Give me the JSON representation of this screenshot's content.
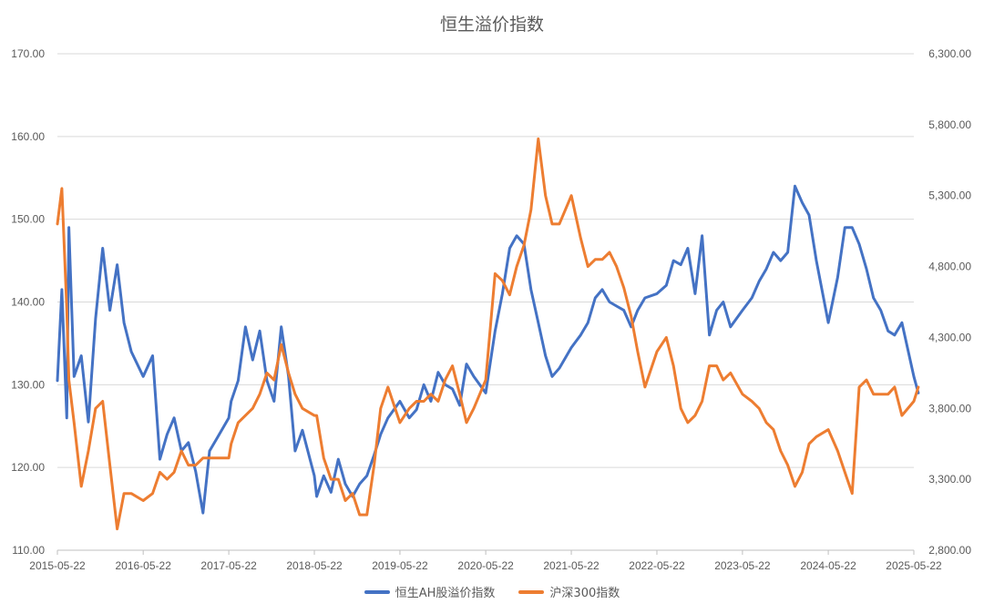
{
  "chart_data": {
    "type": "line",
    "title": "恒生溢价指数",
    "x_tick_labels": [
      "2015-05-22",
      "2016-05-22",
      "2017-05-22",
      "2018-05-22",
      "2019-05-22",
      "2020-05-22",
      "2021-05-22",
      "2022-05-22",
      "2023-05-22",
      "2024-05-22",
      "2025-05-22"
    ],
    "y_left_ticks": [
      "110.00",
      "120.00",
      "130.00",
      "140.00",
      "150.00",
      "160.00",
      "170.00"
    ],
    "y_right_ticks": [
      "2,800.00",
      "3,300.00",
      "3,800.00",
      "4,300.00",
      "4,800.00",
      "5,300.00",
      "5,800.00",
      "6,300.00"
    ],
    "y_left_lim": [
      110,
      170
    ],
    "y_right_lim": [
      2800,
      6300
    ],
    "grid": "horizontal",
    "legend_position": "bottom",
    "colors": {
      "series1": "#4472C4",
      "series2": "#ED7D31"
    },
    "series": [
      {
        "name": "恒生AH股溢价指数",
        "axis": "left",
        "x": [
          "2015-05-22",
          "2015-06-10",
          "2015-07-01",
          "2015-07-10",
          "2015-08-01",
          "2015-09-01",
          "2015-10-01",
          "2015-11-01",
          "2015-12-01",
          "2016-01-01",
          "2016-02-01",
          "2016-03-01",
          "2016-04-01",
          "2016-05-22",
          "2016-07-01",
          "2016-08-01",
          "2016-09-01",
          "2016-10-01",
          "2016-11-01",
          "2016-12-01",
          "2017-01-01",
          "2017-02-01",
          "2017-03-01",
          "2017-04-01",
          "2017-05-22",
          "2017-06-01",
          "2017-07-01",
          "2017-08-01",
          "2017-09-01",
          "2017-10-01",
          "2017-11-01",
          "2017-12-01",
          "2018-01-01",
          "2018-02-01",
          "2018-03-01",
          "2018-04-01",
          "2018-05-22",
          "2018-06-01",
          "2018-07-01",
          "2018-08-01",
          "2018-09-01",
          "2018-10-01",
          "2018-11-01",
          "2018-12-01",
          "2019-01-01",
          "2019-02-01",
          "2019-03-01",
          "2019-04-01",
          "2019-05-22",
          "2019-07-01",
          "2019-08-01",
          "2019-09-01",
          "2019-10-01",
          "2019-11-01",
          "2019-12-01",
          "2020-01-01",
          "2020-02-01",
          "2020-03-01",
          "2020-04-01",
          "2020-05-22",
          "2020-07-01",
          "2020-08-01",
          "2020-09-01",
          "2020-10-01",
          "2020-11-01",
          "2020-12-01",
          "2021-01-01",
          "2021-02-01",
          "2021-03-01",
          "2021-04-01",
          "2021-05-22",
          "2021-07-01",
          "2021-08-01",
          "2021-09-01",
          "2021-10-01",
          "2021-11-01",
          "2021-12-01",
          "2022-01-01",
          "2022-02-01",
          "2022-03-01",
          "2022-04-01",
          "2022-05-22",
          "2022-07-01",
          "2022-08-01",
          "2022-09-01",
          "2022-10-01",
          "2022-11-01",
          "2022-12-01",
          "2023-01-01",
          "2023-02-01",
          "2023-03-01",
          "2023-04-01",
          "2023-05-22",
          "2023-07-01",
          "2023-08-01",
          "2023-09-01",
          "2023-10-01",
          "2023-11-01",
          "2023-12-01",
          "2024-01-01",
          "2024-02-01",
          "2024-03-01",
          "2024-04-01",
          "2024-05-22",
          "2024-07-01",
          "2024-08-01",
          "2024-09-01",
          "2024-10-01",
          "2024-11-01",
          "2024-12-01",
          "2025-01-01",
          "2025-02-01",
          "2025-03-01",
          "2025-04-01",
          "2025-05-22",
          "2025-06-10"
        ],
        "values": [
          130.5,
          141.5,
          126.0,
          149.0,
          131.0,
          133.5,
          125.5,
          138.0,
          146.5,
          139.0,
          144.5,
          137.5,
          134.0,
          131.0,
          133.5,
          121.0,
          124.0,
          126.0,
          122.0,
          123.0,
          119.5,
          114.5,
          122.0,
          123.5,
          126.0,
          128.0,
          130.5,
          137.0,
          133.0,
          136.5,
          130.5,
          128.0,
          137.0,
          131.0,
          122.0,
          124.5,
          119.0,
          116.5,
          119.0,
          117.0,
          121.0,
          118.0,
          116.5,
          118.0,
          119.0,
          121.5,
          124.0,
          126.0,
          128.0,
          126.0,
          127.0,
          130.0,
          128.0,
          131.5,
          130.0,
          129.5,
          127.5,
          132.5,
          131.0,
          129.0,
          136.5,
          141.0,
          146.5,
          148.0,
          147.0,
          141.5,
          137.5,
          133.5,
          131.0,
          132.0,
          134.5,
          136.0,
          137.5,
          140.5,
          141.5,
          140.0,
          139.5,
          139.0,
          137.0,
          139.0,
          140.5,
          141.0,
          142.0,
          145.0,
          144.5,
          146.5,
          141.0,
          148.0,
          136.0,
          139.0,
          140.0,
          137.0,
          139.0,
          140.5,
          142.5,
          144.0,
          146.0,
          145.0,
          146.0,
          154.0,
          152.0,
          150.5,
          145.0,
          137.5,
          143.0,
          149.0,
          149.0,
          147.0,
          144.0,
          140.5,
          139.0,
          136.5,
          136.0,
          137.5,
          131.0,
          129.0
        ]
      },
      {
        "name": "沪深300指数",
        "axis": "right",
        "x": [
          "2015-05-22",
          "2015-06-10",
          "2015-07-01",
          "2015-07-10",
          "2015-08-01",
          "2015-09-01",
          "2015-10-01",
          "2015-11-01",
          "2015-12-01",
          "2016-01-01",
          "2016-02-01",
          "2016-03-01",
          "2016-04-01",
          "2016-05-22",
          "2016-07-01",
          "2016-08-01",
          "2016-09-01",
          "2016-10-01",
          "2016-11-01",
          "2016-12-01",
          "2017-01-01",
          "2017-02-01",
          "2017-03-01",
          "2017-04-01",
          "2017-05-22",
          "2017-06-01",
          "2017-07-01",
          "2017-08-01",
          "2017-09-01",
          "2017-10-01",
          "2017-11-01",
          "2017-12-01",
          "2018-01-01",
          "2018-02-01",
          "2018-03-01",
          "2018-04-01",
          "2018-05-22",
          "2018-06-01",
          "2018-07-01",
          "2018-08-01",
          "2018-09-01",
          "2018-10-01",
          "2018-11-01",
          "2018-12-01",
          "2019-01-01",
          "2019-02-01",
          "2019-03-01",
          "2019-04-01",
          "2019-05-22",
          "2019-07-01",
          "2019-08-01",
          "2019-09-01",
          "2019-10-01",
          "2019-11-01",
          "2019-12-01",
          "2020-01-01",
          "2020-02-01",
          "2020-03-01",
          "2020-04-01",
          "2020-05-22",
          "2020-07-01",
          "2020-08-01",
          "2020-09-01",
          "2020-10-01",
          "2020-11-01",
          "2020-12-01",
          "2021-01-01",
          "2021-02-01",
          "2021-03-01",
          "2021-04-01",
          "2021-05-22",
          "2021-07-01",
          "2021-08-01",
          "2021-09-01",
          "2021-10-01",
          "2021-11-01",
          "2021-12-01",
          "2022-01-01",
          "2022-02-01",
          "2022-03-01",
          "2022-04-01",
          "2022-05-22",
          "2022-07-01",
          "2022-08-01",
          "2022-09-01",
          "2022-10-01",
          "2022-11-01",
          "2022-12-01",
          "2023-01-01",
          "2023-02-01",
          "2023-03-01",
          "2023-04-01",
          "2023-05-22",
          "2023-07-01",
          "2023-08-01",
          "2023-09-01",
          "2023-10-01",
          "2023-11-01",
          "2023-12-01",
          "2024-01-01",
          "2024-02-01",
          "2024-03-01",
          "2024-04-01",
          "2024-05-22",
          "2024-07-01",
          "2024-08-01",
          "2024-09-01",
          "2024-10-01",
          "2024-11-01",
          "2024-12-01",
          "2025-01-01",
          "2025-02-01",
          "2025-03-01",
          "2025-04-01",
          "2025-05-22",
          "2025-06-10"
        ],
        "values": [
          5100,
          5350,
          4500,
          4000,
          3700,
          3250,
          3500,
          3800,
          3850,
          3400,
          2950,
          3200,
          3200,
          3150,
          3200,
          3350,
          3300,
          3350,
          3500,
          3400,
          3400,
          3450,
          3450,
          3450,
          3450,
          3550,
          3700,
          3750,
          3800,
          3900,
          4050,
          4000,
          4250,
          4050,
          3900,
          3800,
          3750,
          3750,
          3450,
          3300,
          3300,
          3150,
          3200,
          3050,
          3050,
          3400,
          3800,
          3950,
          3700,
          3800,
          3850,
          3850,
          3900,
          3850,
          4000,
          4100,
          3900,
          3700,
          3800,
          4000,
          4750,
          4700,
          4600,
          4800,
          4950,
          5200,
          5700,
          5300,
          5100,
          5100,
          5300,
          5000,
          4800,
          4850,
          4850,
          4900,
          4800,
          4650,
          4450,
          4200,
          3950,
          4200,
          4300,
          4100,
          3800,
          3700,
          3750,
          3850,
          4100,
          4100,
          4000,
          4050,
          3900,
          3850,
          3800,
          3700,
          3650,
          3500,
          3400,
          3250,
          3350,
          3550,
          3600,
          3650,
          3500,
          3350,
          3200,
          3950,
          4000,
          3900,
          3900,
          3900,
          3950,
          3750,
          3850,
          3950
        ]
      }
    ]
  },
  "legend": {
    "series1_label": "恒生AH股溢价指数",
    "series2_label": "沪深300指数"
  }
}
